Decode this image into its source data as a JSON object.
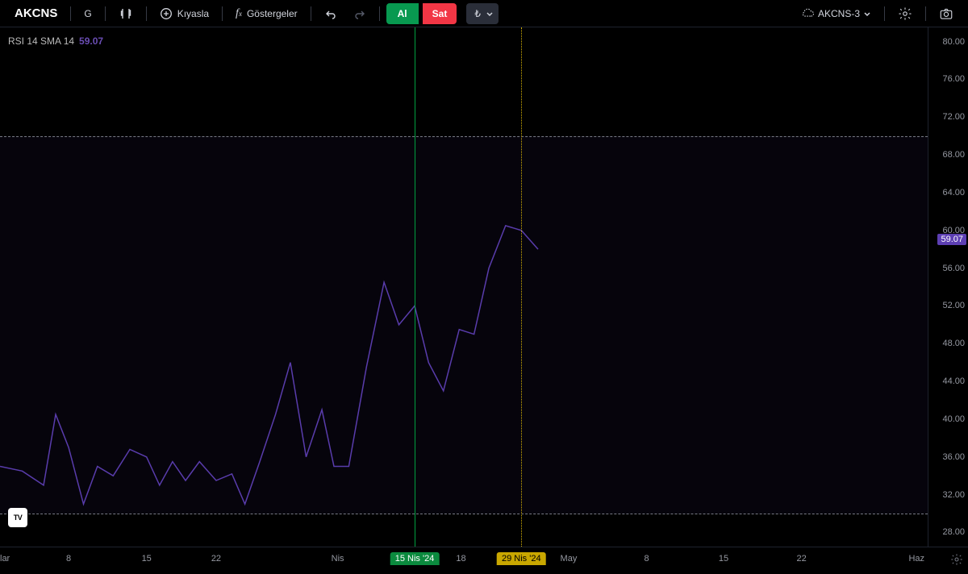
{
  "toolbar": {
    "ticker": "AKCNS",
    "timeframe": "G",
    "compare": "Kıyasla",
    "indicators": "Göstergeler",
    "buy": "Al",
    "sell": "Sat",
    "currency": "₺",
    "layout_name": "AKCNS-3"
  },
  "legend": {
    "indicator": "RSI 14 SMA 14",
    "value": "59.07"
  },
  "chart": {
    "type": "line",
    "line_color": "#5d3fb3",
    "line_width": 1.5,
    "band_color": "rgba(60,40,120,0.10)",
    "dash_color": "#787b86",
    "background": "#000000",
    "y_min": 26.5,
    "y_max": 81.5,
    "band_upper": 70,
    "band_lower": 30,
    "current_value": 59.07,
    "y_ticks": [
      28,
      32,
      36,
      40,
      44,
      48,
      52,
      56,
      60,
      64,
      68,
      72,
      76,
      80
    ],
    "series": [
      {
        "x": 0.0,
        "y": 35.0
      },
      {
        "x": 0.024,
        "y": 34.5
      },
      {
        "x": 0.047,
        "y": 33.0
      },
      {
        "x": 0.06,
        "y": 40.5
      },
      {
        "x": 0.074,
        "y": 37.0
      },
      {
        "x": 0.09,
        "y": 31.0
      },
      {
        "x": 0.105,
        "y": 35.0
      },
      {
        "x": 0.122,
        "y": 34.0
      },
      {
        "x": 0.14,
        "y": 36.8
      },
      {
        "x": 0.158,
        "y": 36.0
      },
      {
        "x": 0.172,
        "y": 33.0
      },
      {
        "x": 0.186,
        "y": 35.5
      },
      {
        "x": 0.2,
        "y": 33.5
      },
      {
        "x": 0.215,
        "y": 35.5
      },
      {
        "x": 0.233,
        "y": 33.5
      },
      {
        "x": 0.25,
        "y": 34.2
      },
      {
        "x": 0.264,
        "y": 31.0
      },
      {
        "x": 0.28,
        "y": 35.5
      },
      {
        "x": 0.297,
        "y": 40.5
      },
      {
        "x": 0.313,
        "y": 46.0
      },
      {
        "x": 0.33,
        "y": 36.0
      },
      {
        "x": 0.347,
        "y": 41.0
      },
      {
        "x": 0.36,
        "y": 35.0
      },
      {
        "x": 0.376,
        "y": 35.0
      },
      {
        "x": 0.395,
        "y": 45.5
      },
      {
        "x": 0.414,
        "y": 54.5
      },
      {
        "x": 0.43,
        "y": 50.0
      },
      {
        "x": 0.447,
        "y": 52.0
      },
      {
        "x": 0.462,
        "y": 46.0
      },
      {
        "x": 0.478,
        "y": 43.0
      },
      {
        "x": 0.495,
        "y": 49.5
      },
      {
        "x": 0.511,
        "y": 49.0
      },
      {
        "x": 0.527,
        "y": 56.0
      },
      {
        "x": 0.545,
        "y": 60.5
      },
      {
        "x": 0.562,
        "y": 60.0
      },
      {
        "x": 0.58,
        "y": 58.0
      }
    ],
    "vline_green_x": 0.447,
    "vline_yellow_x": 0.562,
    "x_ticks": [
      {
        "pos": 0.0,
        "label": "lar",
        "edge": true
      },
      {
        "pos": 0.074,
        "label": "8"
      },
      {
        "pos": 0.158,
        "label": "15"
      },
      {
        "pos": 0.233,
        "label": "22"
      },
      {
        "pos": 0.364,
        "label": "Nis"
      },
      {
        "pos": 0.447,
        "label": "15 Nis '24",
        "hl": "green"
      },
      {
        "pos": 0.497,
        "label": "18"
      },
      {
        "pos": 0.562,
        "label": "29 Nis '24",
        "hl": "yellow"
      },
      {
        "pos": 0.613,
        "label": "May"
      },
      {
        "pos": 0.697,
        "label": "8"
      },
      {
        "pos": 0.78,
        "label": "15"
      },
      {
        "pos": 0.864,
        "label": "22"
      },
      {
        "pos": 0.996,
        "label": "Haz",
        "edge_r": true
      }
    ]
  },
  "watermark": "TV"
}
